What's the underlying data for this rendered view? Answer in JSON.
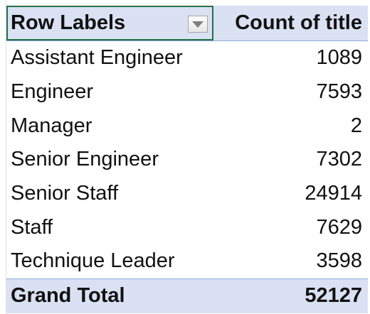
{
  "pivot": {
    "header": {
      "row_labels": "Row Labels",
      "count_label": "Count of title",
      "filter_icon": "dropdown-arrow-icon"
    },
    "rows": [
      {
        "label": "Assistant Engineer",
        "value": "1089"
      },
      {
        "label": "Engineer",
        "value": "7593"
      },
      {
        "label": "Manager",
        "value": "2"
      },
      {
        "label": "Senior Engineer",
        "value": "7302"
      },
      {
        "label": "Senior Staff",
        "value": "24914"
      },
      {
        "label": "Staff",
        "value": "7629"
      },
      {
        "label": "Technique Leader",
        "value": "3598"
      }
    ],
    "total": {
      "label": "Grand Total",
      "value": "52127"
    },
    "colors": {
      "header_bg": "#d9e1f2",
      "selection_border": "#217346",
      "rule": "#8ea9db"
    }
  }
}
